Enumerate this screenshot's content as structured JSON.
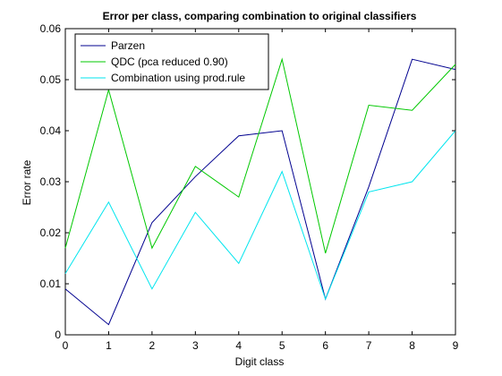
{
  "chart_data": {
    "type": "line",
    "title": "Error per class, comparing combination to original classifiers",
    "xlabel": "Digit class",
    "ylabel": "Error rate",
    "x": [
      0,
      1,
      2,
      3,
      4,
      5,
      6,
      7,
      8,
      9
    ],
    "xlim": [
      0,
      9
    ],
    "ylim": [
      0,
      0.06
    ],
    "xticks": [
      "0",
      "1",
      "2",
      "3",
      "4",
      "5",
      "6",
      "7",
      "8",
      "9"
    ],
    "yticks": [
      "0",
      "0.01",
      "0.02",
      "0.03",
      "0.04",
      "0.05",
      "0.06"
    ],
    "grid": false,
    "legend_position": "top-left",
    "series": [
      {
        "name": "Parzen",
        "color": "#00008f",
        "values": [
          0.009,
          0.002,
          0.022,
          0.031,
          0.039,
          0.04,
          0.007,
          0.029,
          0.054,
          0.052
        ]
      },
      {
        "name": "QDC (pca reduced 0.90)",
        "color": "#00c800",
        "values": [
          0.017,
          0.048,
          0.017,
          0.033,
          0.027,
          0.054,
          0.016,
          0.045,
          0.044,
          0.053
        ]
      },
      {
        "name": "Combination using prod.rule",
        "color": "#00e5ee",
        "values": [
          0.012,
          0.026,
          0.009,
          0.024,
          0.014,
          0.032,
          0.007,
          0.028,
          0.03,
          0.04
        ]
      }
    ]
  }
}
